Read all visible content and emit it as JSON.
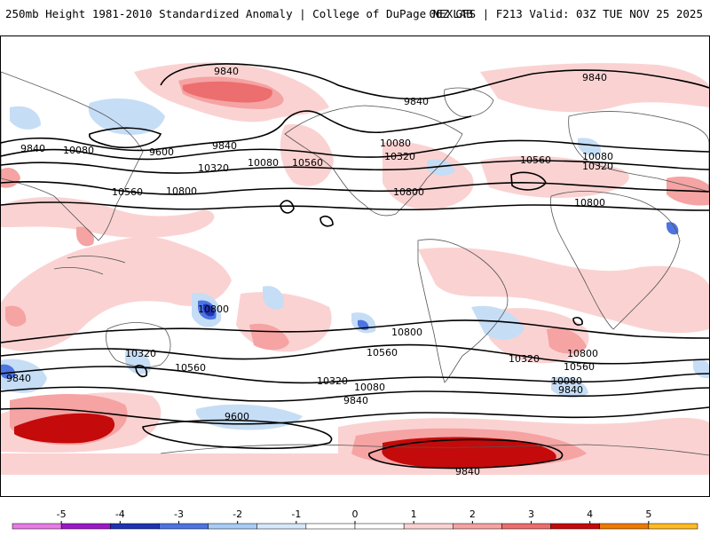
{
  "header": {
    "left": "250mb Height 1981-2010 Standardized Anomaly | College of DuPage NEXLAB",
    "right": "06Z GFS | F213 Valid: 03Z TUE NOV 25 2025"
  },
  "map": {
    "type": "standardized-anomaly-map",
    "variable": "250mb Height",
    "model": "GFS",
    "forecast_hour": "F213",
    "contour_labels": [
      "9840",
      "9840",
      "9840",
      "9840",
      "9840",
      "9840",
      "9840",
      "9840",
      "9840",
      "9600",
      "9600",
      "10080",
      "10080",
      "10080",
      "10080",
      "10080",
      "10080",
      "10320",
      "10320",
      "10320",
      "10320",
      "10320",
      "10320",
      "10560",
      "10560",
      "10560",
      "10560",
      "10560",
      "10560",
      "10800",
      "10800",
      "10800",
      "10800",
      "10800",
      "10800"
    ]
  },
  "colorbar": {
    "tick_labels": [
      "-5",
      "-4",
      "-3",
      "-2",
      "-1",
      "0",
      "1",
      "2",
      "3",
      "4",
      "5"
    ],
    "colors": [
      "#e67ce6",
      "#9c19c9",
      "#1f33b3",
      "#4d74e0",
      "#a8ccf5",
      "#d6e8fa",
      "#ffffff",
      "#ffffff",
      "#fbd2d2",
      "#f5a3a3",
      "#ec6e6e",
      "#c40a0a",
      "#ee7a00",
      "#ffbb22"
    ]
  }
}
